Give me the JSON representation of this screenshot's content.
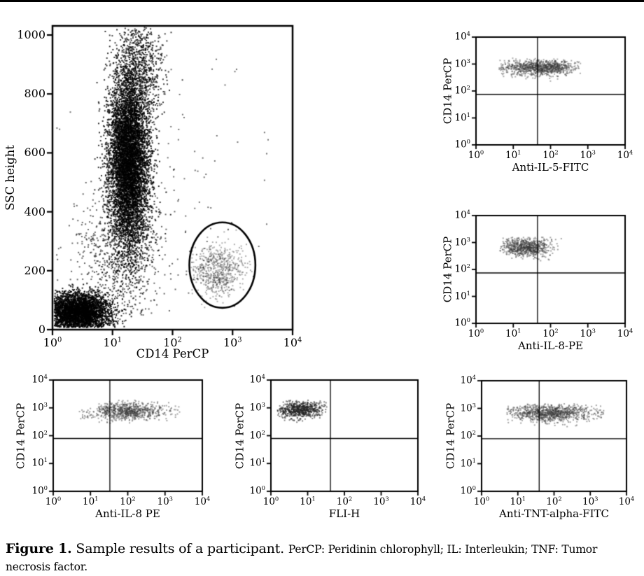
{
  "figure": {
    "caption_label": "Figure 1.",
    "caption_text": "Sample results of a participant.",
    "caption_abbrev": "PerCP: Peridinin chlorophyll; IL: Interleukin; TNF: Tumor necrosis factor."
  },
  "colors": {
    "foreground": "#000000",
    "background": "#ffffff",
    "dense_points": "#000000",
    "gated_points": "#3a3a3a"
  },
  "chart_data": [
    {
      "id": "ssc-vs-cd14-percp",
      "type": "scatter",
      "xlabel": "CD14 PerCP",
      "ylabel": "SSC height",
      "x_scale": "log",
      "xlim_exp": [
        0,
        4
      ],
      "x_ticks": [
        0,
        1,
        2,
        3,
        4
      ],
      "y_scale": "linear",
      "ylim": [
        0,
        1031
      ],
      "y_ticks": [
        0,
        200,
        400,
        600,
        800,
        1000
      ],
      "grid": false,
      "gates": {
        "ellipse": {
          "cx": 2.83,
          "cy": 219,
          "rx": 0.55,
          "ry": 145
        }
      },
      "populations_note": "cluster summaries: cx/sx in log10 decades for log axes, cy/sy in axis units; n = approx event count",
      "populations": [
        {
          "name": "debris-lymphocytes",
          "cx": 0.42,
          "sx": 0.27,
          "cy": 62,
          "sy": 33,
          "n": 3400,
          "color": "#000000",
          "alpha": 0.85,
          "size": 2,
          "clip": [
            0.02,
            1.6,
            10,
            160
          ]
        },
        {
          "name": "granulocytes-main",
          "cx": 1.26,
          "sx": 0.17,
          "cy": 570,
          "sy": 150,
          "n": 7200,
          "color": "#000000",
          "alpha": 0.8,
          "size": 2,
          "clip": [
            0.1,
            2.6,
            130,
            1028
          ]
        },
        {
          "name": "granulocytes-upper",
          "cx": 1.45,
          "sx": 0.2,
          "cy": 900,
          "sy": 80,
          "n": 700,
          "color": "#000000",
          "alpha": 0.75,
          "size": 2,
          "clip": [
            0.6,
            2.3,
            700,
            1028
          ]
        },
        {
          "name": "bridge-scatter",
          "cx": 1.12,
          "sx": 0.38,
          "cy": 255,
          "sy": 120,
          "n": 750,
          "color": "#000000",
          "alpha": 0.6,
          "size": 2,
          "clip": [
            0.02,
            2.4,
            30,
            520
          ]
        },
        {
          "name": "monocytes-gated",
          "cx": 2.74,
          "sx": 0.22,
          "cy": 204,
          "sy": 42,
          "n": 650,
          "color": "#3a3a3a",
          "alpha": 0.4,
          "size": 2,
          "clip": [
            2.3,
            3.4,
            70,
            360
          ]
        },
        {
          "name": "sparse-background",
          "cx": 1.9,
          "sx": 0.8,
          "cy": 420,
          "sy": 260,
          "n": 120,
          "color": "#000000",
          "alpha": 0.55,
          "size": 2,
          "clip": [
            0.05,
            3.6,
            30,
            1010
          ]
        }
      ],
      "seed": 11
    },
    {
      "id": "cd14-vs-anti-il5-fitc",
      "type": "scatter",
      "xlabel": "Anti-IL-5-FITC",
      "ylabel": "CD14 PerCP",
      "x_scale": "log",
      "xlim_exp": [
        0,
        4
      ],
      "x_ticks": [
        0,
        1,
        2,
        3,
        4
      ],
      "y_scale": "log",
      "ylim_exp": [
        0,
        4
      ],
      "y_ticks": [
        0,
        1,
        2,
        3,
        4
      ],
      "grid": false,
      "gates": {
        "quad": {
          "x": 1.65,
          "y": 1.87
        }
      },
      "populations": [
        {
          "name": "monocytes",
          "cx": 1.55,
          "sx": 0.55,
          "cy": 2.9,
          "sy": 0.15,
          "n": 650,
          "color": "#3a3a3a",
          "alpha": 0.42,
          "size": 2,
          "clip": [
            0.6,
            2.8,
            2.35,
            3.25
          ]
        },
        {
          "name": "monocytes-core",
          "cx": 1.95,
          "sx": 0.35,
          "cy": 2.9,
          "sy": 0.13,
          "n": 380,
          "color": "#3a3a3a",
          "alpha": 0.42,
          "size": 2,
          "clip": [
            0.8,
            2.75,
            2.4,
            3.2
          ]
        }
      ],
      "seed": 22
    },
    {
      "id": "cd14-vs-anti-il8-pe-upper",
      "type": "scatter",
      "xlabel": "Anti-IL-8-PE",
      "ylabel": "CD14 PerCP",
      "x_scale": "log",
      "xlim_exp": [
        0,
        4
      ],
      "x_ticks": [
        0,
        1,
        2,
        3,
        4
      ],
      "y_scale": "log",
      "ylim_exp": [
        0,
        4
      ],
      "y_ticks": [
        0,
        1,
        2,
        3,
        4
      ],
      "grid": false,
      "gates": {
        "quad": {
          "x": 1.65,
          "y": 1.87
        }
      },
      "populations": [
        {
          "name": "monocytes",
          "cx": 1.32,
          "sx": 0.34,
          "cy": 2.85,
          "sy": 0.17,
          "n": 750,
          "color": "#3a3a3a",
          "alpha": 0.45,
          "size": 2,
          "clip": [
            0.6,
            2.35,
            2.35,
            3.22
          ]
        }
      ],
      "seed": 33
    },
    {
      "id": "cd14-vs-anti-il8-pe-lower",
      "type": "scatter",
      "xlabel": "Anti-IL-8 PE",
      "ylabel": "CD14 PerCP",
      "x_scale": "log",
      "xlim_exp": [
        0,
        4
      ],
      "x_ticks": [
        0,
        1,
        2,
        3,
        4
      ],
      "y_scale": "log",
      "ylim_exp": [
        0,
        4
      ],
      "y_ticks": [
        0,
        1,
        2,
        3,
        4
      ],
      "grid": false,
      "gates": {
        "quad": {
          "x": 1.52,
          "y": 1.9
        }
      },
      "populations": [
        {
          "name": "monocytes",
          "cx": 2.05,
          "sx": 0.4,
          "cy": 2.9,
          "sy": 0.16,
          "n": 700,
          "color": "#3a3a3a",
          "alpha": 0.45,
          "size": 2,
          "clip": [
            1.05,
            3.35,
            2.4,
            3.3
          ]
        },
        {
          "name": "left-tail",
          "cx": 1.3,
          "sx": 0.35,
          "cy": 2.85,
          "sy": 0.18,
          "n": 90,
          "color": "#3a3a3a",
          "alpha": 0.45,
          "size": 2,
          "clip": [
            0.6,
            1.8,
            2.4,
            3.2
          ]
        },
        {
          "name": "right-outliers",
          "cx": 2.95,
          "sx": 0.3,
          "cy": 2.9,
          "sy": 0.15,
          "n": 35,
          "color": "#3a3a3a",
          "alpha": 0.45,
          "size": 2,
          "clip": [
            2.5,
            3.4,
            2.5,
            3.2
          ]
        }
      ],
      "seed": 44
    },
    {
      "id": "cd14-vs-fli-h",
      "type": "scatter",
      "xlabel": "FLI-H",
      "ylabel": "CD14 PerCP",
      "x_scale": "log",
      "xlim_exp": [
        0,
        4
      ],
      "x_ticks": [
        0,
        1,
        2,
        3,
        4
      ],
      "y_scale": "log",
      "ylim_exp": [
        0,
        4
      ],
      "y_ticks": [
        0,
        1,
        2,
        3,
        4
      ],
      "grid": false,
      "gates": {
        "quad": {
          "x": 1.62,
          "y": 1.9
        }
      },
      "populations": [
        {
          "name": "monocytes",
          "cx": 0.78,
          "sx": 0.3,
          "cy": 2.95,
          "sy": 0.16,
          "n": 680,
          "color": "#222222",
          "alpha": 0.55,
          "size": 2,
          "clip": [
            0.15,
            1.5,
            2.45,
            3.3
          ]
        }
      ],
      "seed": 55
    },
    {
      "id": "cd14-vs-anti-tnt-alpha-fitc",
      "type": "scatter",
      "xlabel": "Anti-TNT-alpha-FITC",
      "ylabel": "CD14 PerCP",
      "x_scale": "log",
      "xlim_exp": [
        0,
        4
      ],
      "x_ticks": [
        0,
        1,
        2,
        3,
        4
      ],
      "y_scale": "log",
      "ylim_exp": [
        0,
        4
      ],
      "y_ticks": [
        0,
        1,
        2,
        3,
        4
      ],
      "grid": false,
      "gates": {
        "quad": {
          "x": 1.59,
          "y": 1.9
        }
      },
      "populations": [
        {
          "name": "monocytes",
          "cx": 1.9,
          "sx": 0.62,
          "cy": 2.85,
          "sy": 0.16,
          "n": 1000,
          "color": "#3a3a3a",
          "alpha": 0.45,
          "size": 2,
          "clip": [
            0.68,
            3.35,
            2.35,
            3.2
          ]
        }
      ],
      "seed": 66
    }
  ]
}
